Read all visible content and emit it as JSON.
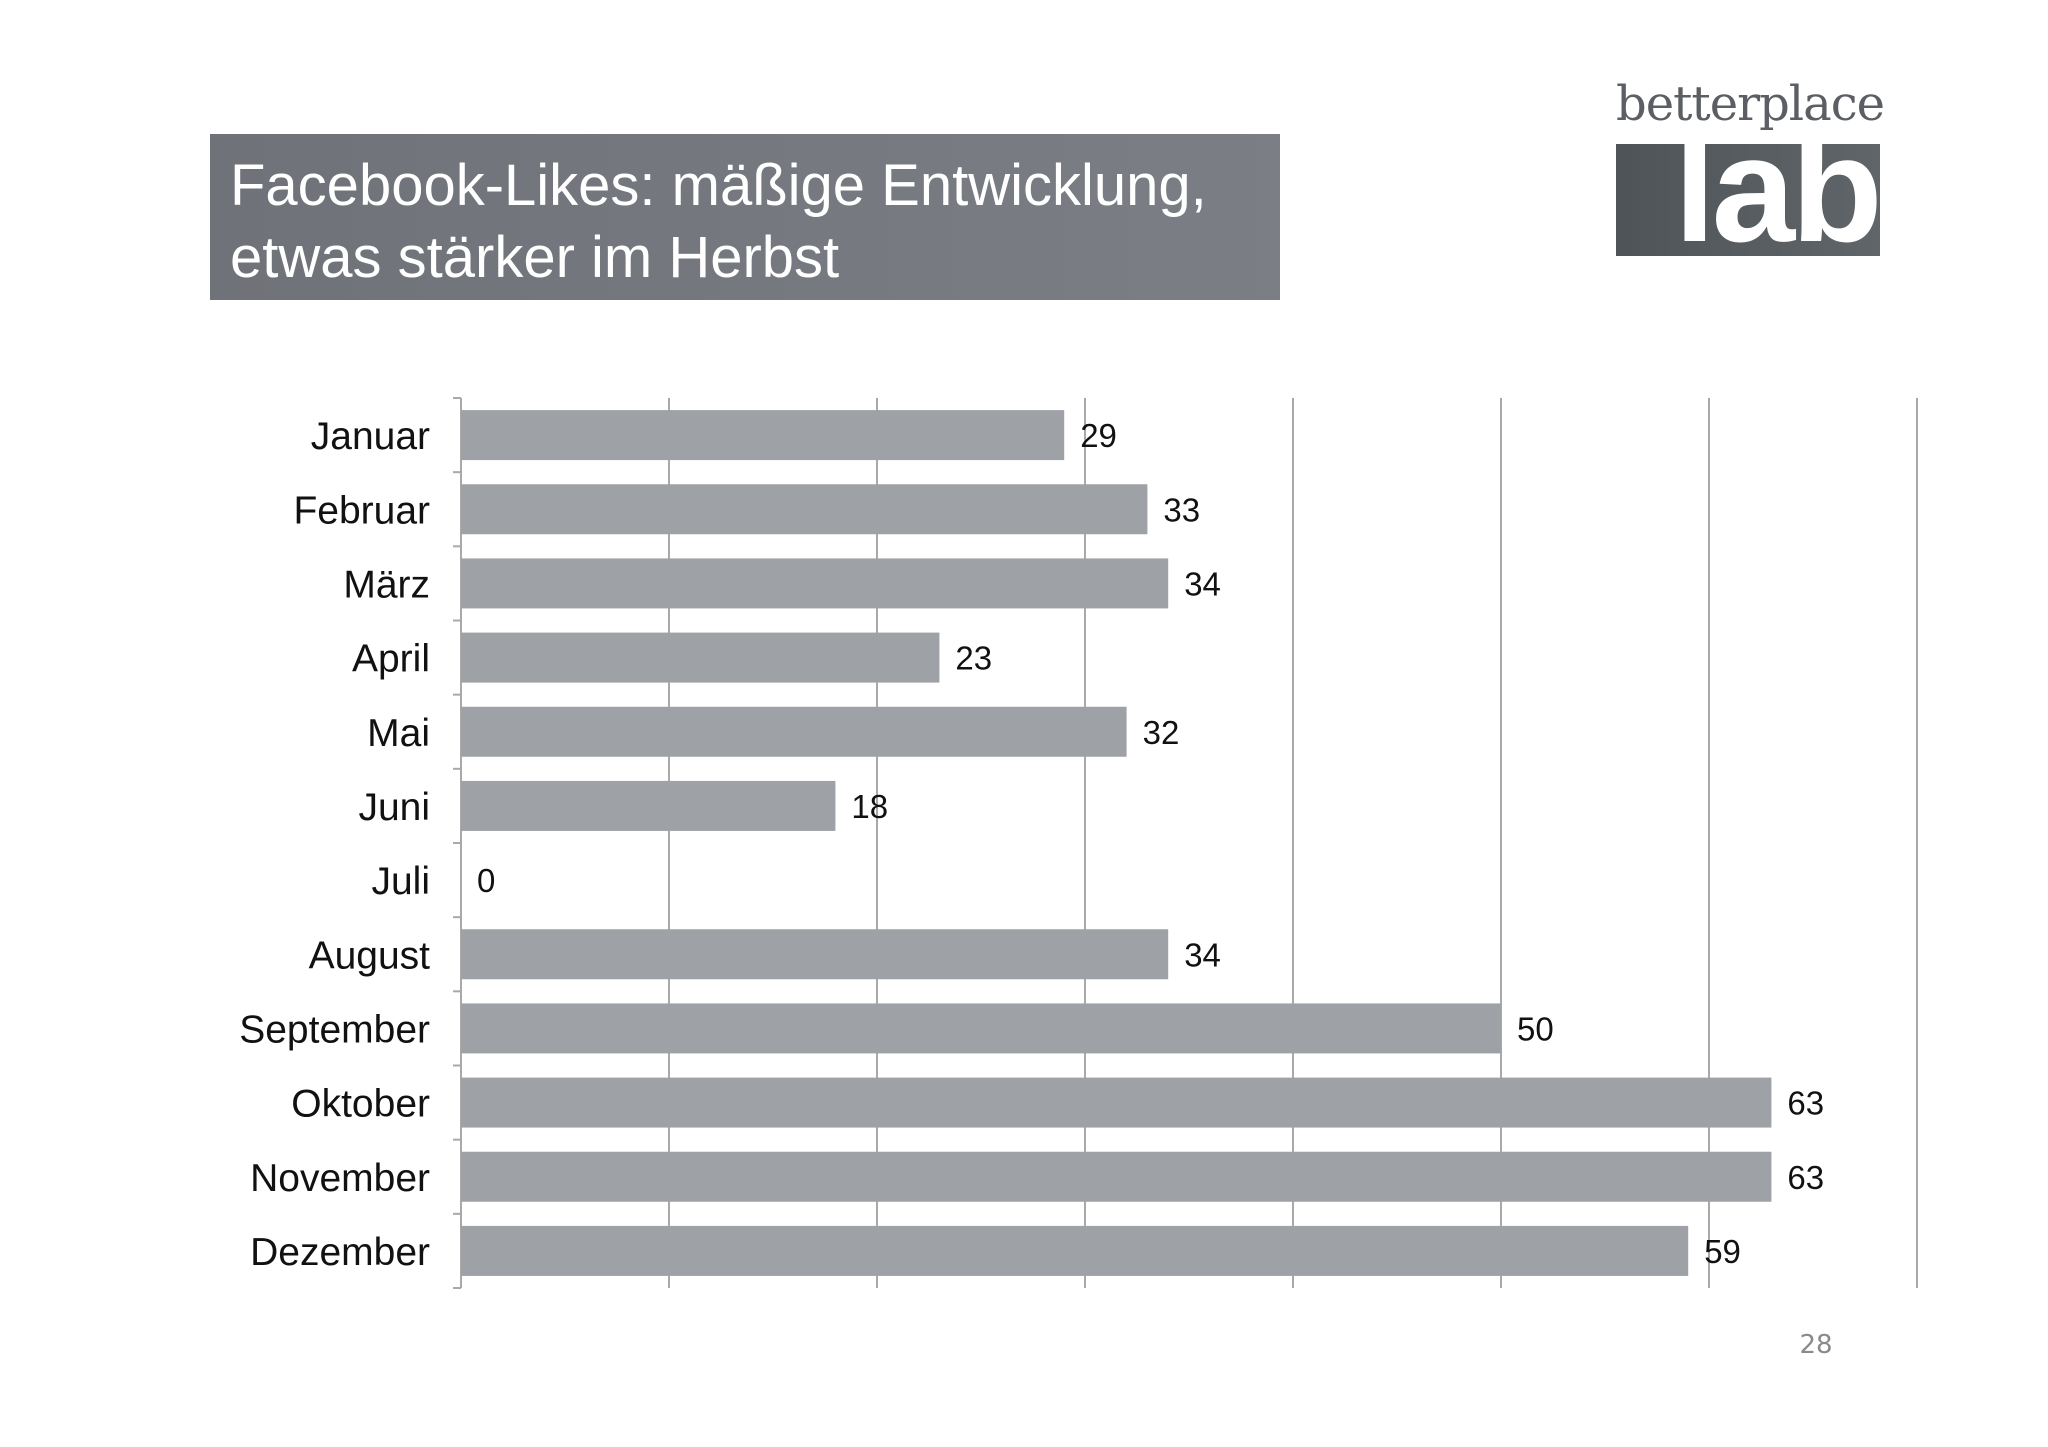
{
  "slide": {
    "title_lines": [
      "Facebook-Likes: mäßige Entwicklung,",
      "etwas stärker im Herbst"
    ],
    "logo_top": "betterplace",
    "logo_bottom": "lab",
    "page_number": "28"
  },
  "chart_data": {
    "type": "bar",
    "orientation": "horizontal",
    "categories": [
      "Januar",
      "Februar",
      "März",
      "April",
      "Mai",
      "Juni",
      "Juli",
      "August",
      "September",
      "Oktober",
      "November",
      "Dezember"
    ],
    "values": [
      29,
      33,
      34,
      23,
      32,
      18,
      0,
      34,
      50,
      63,
      63,
      59
    ],
    "data_labels": [
      "29",
      "33",
      "34",
      "23",
      "32",
      "18",
      "0",
      "34",
      "50",
      "63",
      "63",
      "59"
    ],
    "title": "",
    "xlabel": "",
    "ylabel": "",
    "xlim": [
      0,
      70
    ],
    "grid": true,
    "legend": "none",
    "bar_color": "#9ea1a6"
  }
}
